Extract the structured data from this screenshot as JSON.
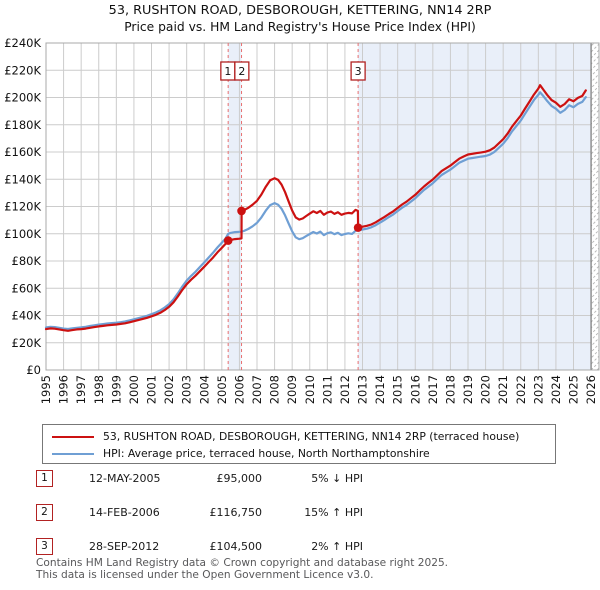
{
  "chart_data": {
    "type": "line",
    "title": "53, RUSHTON ROAD, DESBOROUGH, KETTERING, NN14 2RP",
    "subtitle": "Price paid vs. HM Land Registry's House Price Index (HPI)",
    "x_axis": {
      "min": 1995,
      "max": 2026.45,
      "ticks": [
        1995,
        1996,
        1997,
        1998,
        1999,
        2000,
        2001,
        2002,
        2003,
        2004,
        2005,
        2006,
        2007,
        2008,
        2009,
        2010,
        2011,
        2012,
        2013,
        2014,
        2015,
        2016,
        2017,
        2018,
        2019,
        2020,
        2021,
        2022,
        2023,
        2024,
        2025,
        2026
      ]
    },
    "y_axis": {
      "min": 0,
      "max": 240000,
      "step": 20000,
      "labels": [
        "£0",
        "£20K",
        "£40K",
        "£60K",
        "£80K",
        "£100K",
        "£120K",
        "£140K",
        "£160K",
        "£180K",
        "£200K",
        "£220K",
        "£240K"
      ]
    },
    "grid": true,
    "legend_position": "bottom",
    "colors": {
      "property_line": "#cc1111",
      "hpi_line": "#6f9fd4",
      "grid": "#cccccc",
      "plot_border": "#a8a8a8",
      "sale_dashed_line": "#e87070",
      "ownership_shade": "#e9eff9",
      "marker_box_border": "#b22222",
      "hatch": "#b5b5b5"
    },
    "series": [
      {
        "name": "53, RUSHTON ROAD, DESBOROUGH, KETTERING, NN14 2RP (terraced house)",
        "color": "#cc1111",
        "points": [
          [
            1995.0,
            30000
          ],
          [
            1995.25,
            30500
          ],
          [
            1995.5,
            30300
          ],
          [
            1995.75,
            29800
          ],
          [
            1996.0,
            29200
          ],
          [
            1996.25,
            28800
          ],
          [
            1996.5,
            29300
          ],
          [
            1996.75,
            29800
          ],
          [
            1997.0,
            30000
          ],
          [
            1997.25,
            30400
          ],
          [
            1997.5,
            31000
          ],
          [
            1997.75,
            31500
          ],
          [
            1998.0,
            32000
          ],
          [
            1998.25,
            32400
          ],
          [
            1998.5,
            32800
          ],
          [
            1998.75,
            33100
          ],
          [
            1999.0,
            33400
          ],
          [
            1999.25,
            33800
          ],
          [
            1999.5,
            34300
          ],
          [
            1999.75,
            35000
          ],
          [
            2000.0,
            35800
          ],
          [
            2000.25,
            36600
          ],
          [
            2000.5,
            37500
          ],
          [
            2000.75,
            38300
          ],
          [
            2001.0,
            39400
          ],
          [
            2001.25,
            40500
          ],
          [
            2001.5,
            42000
          ],
          [
            2001.75,
            44000
          ],
          [
            2002.0,
            46400
          ],
          [
            2002.25,
            49700
          ],
          [
            2002.5,
            54000
          ],
          [
            2002.75,
            58800
          ],
          [
            2003.0,
            63000
          ],
          [
            2003.25,
            66300
          ],
          [
            2003.5,
            69200
          ],
          [
            2003.75,
            72500
          ],
          [
            2004.0,
            75800
          ],
          [
            2004.25,
            79200
          ],
          [
            2004.5,
            82500
          ],
          [
            2004.75,
            86300
          ],
          [
            2005.0,
            89600
          ],
          [
            2005.2,
            92500
          ],
          [
            2005.36,
            95000
          ],
          [
            2005.5,
            95500
          ],
          [
            2005.75,
            96100
          ],
          [
            2006.0,
            96400
          ],
          [
            2006.12,
            96600
          ],
          [
            2006.125,
            116750
          ],
          [
            2006.25,
            117300
          ],
          [
            2006.5,
            119000
          ],
          [
            2006.75,
            121300
          ],
          [
            2007.0,
            124200
          ],
          [
            2007.25,
            128800
          ],
          [
            2007.5,
            134500
          ],
          [
            2007.75,
            139200
          ],
          [
            2008.0,
            140800
          ],
          [
            2008.2,
            139500
          ],
          [
            2008.4,
            136000
          ],
          [
            2008.6,
            130500
          ],
          [
            2008.8,
            123500
          ],
          [
            2009.0,
            117000
          ],
          [
            2009.2,
            112000
          ],
          [
            2009.4,
            110400
          ],
          [
            2009.6,
            111200
          ],
          [
            2009.8,
            113000
          ],
          [
            2010.0,
            114800
          ],
          [
            2010.2,
            116500
          ],
          [
            2010.4,
            115200
          ],
          [
            2010.6,
            116800
          ],
          [
            2010.8,
            113900
          ],
          [
            2011.0,
            115500
          ],
          [
            2011.2,
            116300
          ],
          [
            2011.4,
            114600
          ],
          [
            2011.6,
            115800
          ],
          [
            2011.8,
            113900
          ],
          [
            2012.0,
            114800
          ],
          [
            2012.2,
            115300
          ],
          [
            2012.4,
            114900
          ],
          [
            2012.6,
            117500
          ],
          [
            2012.74,
            116800
          ],
          [
            2012.75,
            104500
          ],
          [
            2013.0,
            105200
          ],
          [
            2013.25,
            105800
          ],
          [
            2013.5,
            106800
          ],
          [
            2013.75,
            108400
          ],
          [
            2014.0,
            110400
          ],
          [
            2014.25,
            112400
          ],
          [
            2014.5,
            114500
          ],
          [
            2014.75,
            116500
          ],
          [
            2015.0,
            119000
          ],
          [
            2015.25,
            121500
          ],
          [
            2015.5,
            123500
          ],
          [
            2015.75,
            126100
          ],
          [
            2016.0,
            128600
          ],
          [
            2016.25,
            131700
          ],
          [
            2016.5,
            134700
          ],
          [
            2016.75,
            137300
          ],
          [
            2017.0,
            139800
          ],
          [
            2017.25,
            142900
          ],
          [
            2017.5,
            146000
          ],
          [
            2017.75,
            148000
          ],
          [
            2018.0,
            150000
          ],
          [
            2018.25,
            152600
          ],
          [
            2018.5,
            155100
          ],
          [
            2018.75,
            156700
          ],
          [
            2019.0,
            158200
          ],
          [
            2019.25,
            158700
          ],
          [
            2019.5,
            159200
          ],
          [
            2019.75,
            159700
          ],
          [
            2020.0,
            160200
          ],
          [
            2020.25,
            161300
          ],
          [
            2020.5,
            163300
          ],
          [
            2020.75,
            166400
          ],
          [
            2021.0,
            169400
          ],
          [
            2021.25,
            173500
          ],
          [
            2021.5,
            178600
          ],
          [
            2021.75,
            182700
          ],
          [
            2022.0,
            186800
          ],
          [
            2022.25,
            191900
          ],
          [
            2022.5,
            197000
          ],
          [
            2022.75,
            202100
          ],
          [
            2023.0,
            206500
          ],
          [
            2023.1,
            209000
          ],
          [
            2023.3,
            205500
          ],
          [
            2023.5,
            202000
          ],
          [
            2023.75,
            198200
          ],
          [
            2024.0,
            196200
          ],
          [
            2024.25,
            193200
          ],
          [
            2024.5,
            195200
          ],
          [
            2024.75,
            198700
          ],
          [
            2025.0,
            197200
          ],
          [
            2025.25,
            199700
          ],
          [
            2025.5,
            201200
          ],
          [
            2025.7,
            205200
          ]
        ]
      },
      {
        "name": "HPI: Average price, terraced house, North Northamptonshire",
        "color": "#6f9fd4",
        "points": [
          [
            1995.0,
            31200
          ],
          [
            1995.25,
            31700
          ],
          [
            1995.5,
            31500
          ],
          [
            1995.75,
            31000
          ],
          [
            1996.0,
            30400
          ],
          [
            1996.25,
            30100
          ],
          [
            1996.5,
            30600
          ],
          [
            1996.75,
            31000
          ],
          [
            1997.0,
            31300
          ],
          [
            1997.25,
            31700
          ],
          [
            1997.5,
            32300
          ],
          [
            1997.75,
            32800
          ],
          [
            1998.0,
            33300
          ],
          [
            1998.25,
            33700
          ],
          [
            1998.5,
            34100
          ],
          [
            1998.75,
            34400
          ],
          [
            1999.0,
            34700
          ],
          [
            1999.25,
            35100
          ],
          [
            1999.5,
            35700
          ],
          [
            1999.75,
            36400
          ],
          [
            2000.0,
            37200
          ],
          [
            2000.25,
            38000
          ],
          [
            2000.5,
            38900
          ],
          [
            2000.75,
            39800
          ],
          [
            2001.0,
            41000
          ],
          [
            2001.25,
            42200
          ],
          [
            2001.5,
            43800
          ],
          [
            2001.75,
            45900
          ],
          [
            2002.0,
            48400
          ],
          [
            2002.25,
            51800
          ],
          [
            2002.5,
            56300
          ],
          [
            2002.75,
            61300
          ],
          [
            2003.0,
            65700
          ],
          [
            2003.25,
            69100
          ],
          [
            2003.5,
            72100
          ],
          [
            2003.75,
            75600
          ],
          [
            2004.0,
            79000
          ],
          [
            2004.25,
            82500
          ],
          [
            2004.5,
            86000
          ],
          [
            2004.75,
            89900
          ],
          [
            2005.0,
            93400
          ],
          [
            2005.2,
            96400
          ],
          [
            2005.36,
            100000
          ],
          [
            2005.5,
            100600
          ],
          [
            2005.75,
            101200
          ],
          [
            2006.0,
            101400
          ],
          [
            2006.12,
            101500
          ],
          [
            2006.25,
            102000
          ],
          [
            2006.5,
            103500
          ],
          [
            2006.75,
            105500
          ],
          [
            2007.0,
            108000
          ],
          [
            2007.25,
            112000
          ],
          [
            2007.5,
            117000
          ],
          [
            2007.75,
            121000
          ],
          [
            2008.0,
            122500
          ],
          [
            2008.2,
            121300
          ],
          [
            2008.4,
            118300
          ],
          [
            2008.6,
            113500
          ],
          [
            2008.8,
            107400
          ],
          [
            2009.0,
            101700
          ],
          [
            2009.2,
            97400
          ],
          [
            2009.4,
            96000
          ],
          [
            2009.6,
            96700
          ],
          [
            2009.8,
            98300
          ],
          [
            2010.0,
            99800
          ],
          [
            2010.2,
            101300
          ],
          [
            2010.4,
            100200
          ],
          [
            2010.6,
            101600
          ],
          [
            2010.8,
            99000
          ],
          [
            2011.0,
            100400
          ],
          [
            2011.2,
            101100
          ],
          [
            2011.4,
            99700
          ],
          [
            2011.6,
            100700
          ],
          [
            2011.8,
            99000
          ],
          [
            2012.0,
            99800
          ],
          [
            2012.2,
            100300
          ],
          [
            2012.4,
            99900
          ],
          [
            2012.6,
            102200
          ],
          [
            2012.75,
            102500
          ],
          [
            2013.0,
            103100
          ],
          [
            2013.25,
            103700
          ],
          [
            2013.5,
            104700
          ],
          [
            2013.75,
            106300
          ],
          [
            2014.0,
            108200
          ],
          [
            2014.25,
            110200
          ],
          [
            2014.5,
            112300
          ],
          [
            2014.75,
            114200
          ],
          [
            2015.0,
            116700
          ],
          [
            2015.25,
            119100
          ],
          [
            2015.5,
            121100
          ],
          [
            2015.75,
            123600
          ],
          [
            2016.0,
            126100
          ],
          [
            2016.25,
            129100
          ],
          [
            2016.5,
            132100
          ],
          [
            2016.75,
            134600
          ],
          [
            2017.0,
            137100
          ],
          [
            2017.25,
            140100
          ],
          [
            2017.5,
            143100
          ],
          [
            2017.75,
            145100
          ],
          [
            2018.0,
            147100
          ],
          [
            2018.25,
            149600
          ],
          [
            2018.5,
            152100
          ],
          [
            2018.75,
            153600
          ],
          [
            2019.0,
            155100
          ],
          [
            2019.25,
            155600
          ],
          [
            2019.5,
            156100
          ],
          [
            2019.75,
            156600
          ],
          [
            2020.0,
            157100
          ],
          [
            2020.25,
            158100
          ],
          [
            2020.5,
            160100
          ],
          [
            2020.75,
            163100
          ],
          [
            2021.0,
            166100
          ],
          [
            2021.25,
            170100
          ],
          [
            2021.5,
            175100
          ],
          [
            2021.75,
            179100
          ],
          [
            2022.0,
            183100
          ],
          [
            2022.25,
            188100
          ],
          [
            2022.5,
            193100
          ],
          [
            2022.75,
            198100
          ],
          [
            2023.0,
            202000
          ],
          [
            2023.1,
            203800
          ],
          [
            2023.3,
            200800
          ],
          [
            2023.5,
            197500
          ],
          [
            2023.75,
            193800
          ],
          [
            2024.0,
            191800
          ],
          [
            2024.25,
            188800
          ],
          [
            2024.5,
            190800
          ],
          [
            2024.75,
            194300
          ],
          [
            2025.0,
            192800
          ],
          [
            2025.25,
            195300
          ],
          [
            2025.5,
            196800
          ],
          [
            2025.7,
            200300
          ]
        ]
      }
    ],
    "sales": [
      {
        "label": "1",
        "date": "12-MAY-2005",
        "year": 2005.36,
        "price": 95000,
        "price_label": "£95,000",
        "hpi_delta": "5% ↓ HPI"
      },
      {
        "label": "2",
        "date": "14-FEB-2006",
        "year": 2006.12,
        "price": 116750,
        "price_label": "£116,750",
        "hpi_delta": "15% ↑ HPI"
      },
      {
        "label": "3",
        "date": "28-SEP-2012",
        "year": 2012.75,
        "price": 104500,
        "price_label": "£104,500",
        "hpi_delta": "2% ↑ HPI"
      }
    ],
    "ownership_shading": [
      [
        2005.36,
        2006.12
      ],
      [
        2012.75,
        2026.0
      ]
    ],
    "future_hatch_start": 2026.0
  },
  "footer": {
    "line1": "Contains HM Land Registry data © Crown copyright and database right 2025.",
    "line2": "This data is licensed under the Open Government Licence v3.0."
  }
}
